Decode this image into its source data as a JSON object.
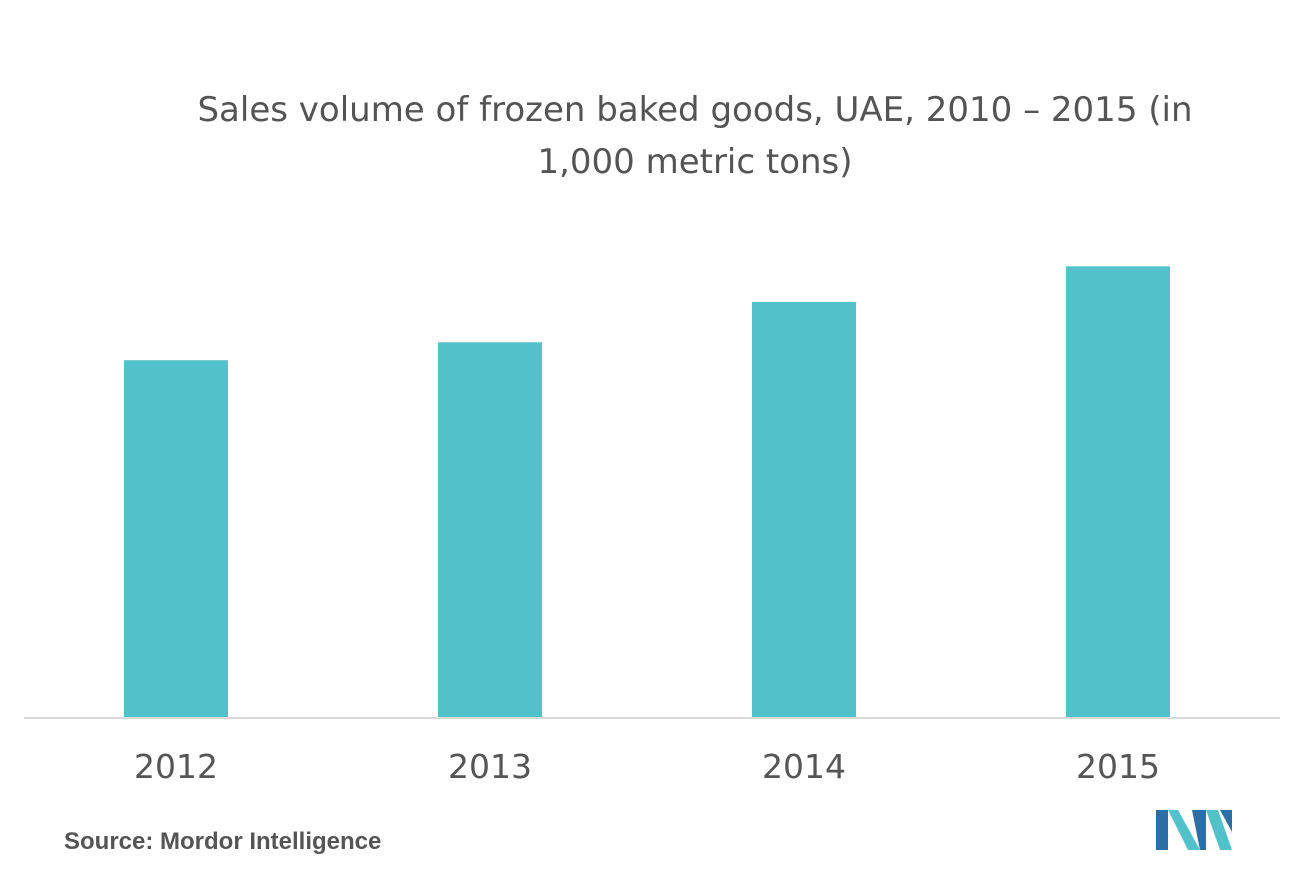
{
  "chart_data": {
    "type": "bar",
    "title": "Sales volume of frozen baked goods, UAE, 2010 – 2015 (in 1,000 metric tons)",
    "categories": [
      "2012",
      "2013",
      "2014",
      "2015"
    ],
    "values": [
      80,
      84,
      93,
      101
    ],
    "ylim": [
      0,
      110
    ],
    "xlabel": "",
    "ylabel": "",
    "grid": false,
    "bar_color": "#52C2CA",
    "axis_color": "#D9D9D9"
  },
  "footer": {
    "source": "Source: Mordor Intelligence"
  },
  "logo": {
    "icon": "mordor-intelligence-logo",
    "colors": [
      "#2C6FA5",
      "#52C2CA"
    ]
  }
}
